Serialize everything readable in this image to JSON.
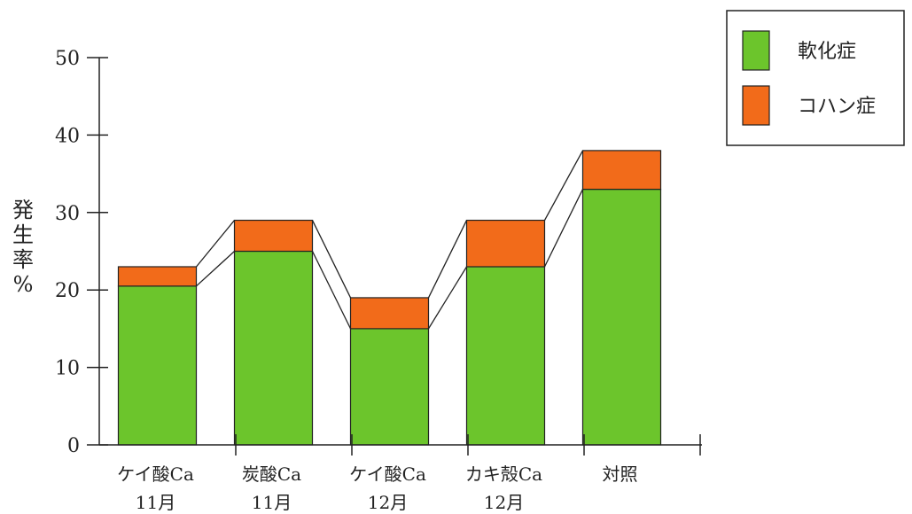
{
  "chart_data": {
    "type": "bar",
    "stacked": true,
    "categories": [
      [
        "ケイ酸Ca",
        "11月"
      ],
      [
        "炭酸Ca",
        "11月"
      ],
      [
        "ケイ酸Ca",
        "12月"
      ],
      [
        "カキ殻Ca",
        "12月"
      ],
      [
        "対照"
      ]
    ],
    "series": [
      {
        "name": "軟化症",
        "color": "#6cc52c",
        "values": [
          20.5,
          25,
          15,
          23,
          33
        ]
      },
      {
        "name": "コハン症",
        "color": "#f26b1a",
        "values": [
          2.5,
          4,
          4,
          6,
          5
        ]
      }
    ],
    "ylabel": [
      "発",
      "生",
      "率",
      "%"
    ],
    "ylim": [
      0,
      50
    ],
    "yticks": [
      0,
      10,
      20,
      30,
      40,
      50
    ],
    "grid": false,
    "legend_position": "top-right",
    "connector_lines": true
  }
}
